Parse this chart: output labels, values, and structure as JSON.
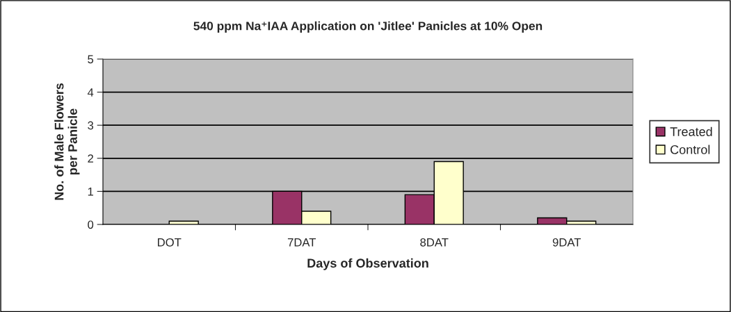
{
  "chart_data": {
    "type": "bar",
    "title": "540 ppm Na⁺IAA Application on 'Jitlee' Panicles at 10% Open",
    "xlabel": "Days of Observation",
    "ylabel": "No. of Male Flowers\nper Panicle",
    "categories": [
      "DOT",
      "7DAT",
      "8DAT",
      "9DAT"
    ],
    "series": [
      {
        "name": "Treated",
        "color": "#993366",
        "values": [
          null,
          1.0,
          0.9,
          0.2
        ]
      },
      {
        "name": "Control",
        "color": "#ffffcc",
        "values": [
          0.1,
          0.4,
          1.9,
          0.1
        ]
      }
    ],
    "ylim": [
      0,
      5
    ],
    "yticks": [
      0,
      1,
      2,
      3,
      4,
      5
    ],
    "grid": "y",
    "legend": "right"
  }
}
